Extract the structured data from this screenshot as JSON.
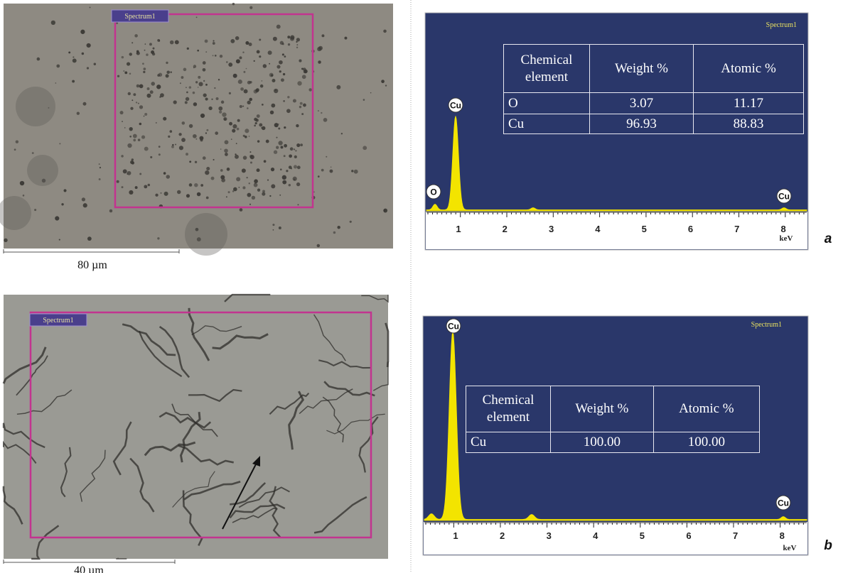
{
  "panels": [
    {
      "label": "a",
      "image": {
        "region_label": "Spectrum1",
        "scale_bar": "80 µm"
      },
      "spectrum": {
        "title": "Spectrum1",
        "axis_ticks": [
          "1",
          "2",
          "3",
          "4",
          "5",
          "6",
          "7",
          "8"
        ],
        "axis_unit": "keV",
        "peak_labels": [
          "Cu",
          "O",
          "Cu"
        ],
        "table": {
          "header": [
            "Chemical element",
            "Weight %",
            "Atomic %"
          ],
          "rows": [
            [
              "O",
              "3.07",
              "11.17"
            ],
            [
              "Cu",
              "96.93",
              "88.83"
            ]
          ]
        }
      }
    },
    {
      "label": "b",
      "image": {
        "region_label": "Spectrum1",
        "scale_bar": "40 µm"
      },
      "spectrum": {
        "title": "Spectrum1",
        "axis_ticks": [
          "1",
          "2",
          "3",
          "4",
          "5",
          "6",
          "7",
          "8"
        ],
        "axis_unit": "keV",
        "peak_labels": [
          "Cu",
          "Cu"
        ],
        "table": {
          "header": [
            "Chemical element",
            "Weight %",
            "Atomic %"
          ],
          "rows": [
            [
              "Cu",
              "100.00",
              "100.00"
            ]
          ]
        }
      }
    }
  ]
}
